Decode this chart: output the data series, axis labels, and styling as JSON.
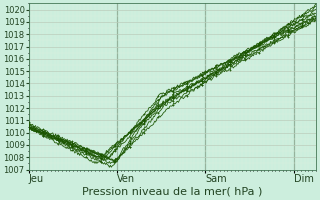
{
  "xlabel": "Pression niveau de la mer( hPa )",
  "ylim": [
    1007,
    1020.5
  ],
  "yticks": [
    1007,
    1008,
    1009,
    1010,
    1011,
    1012,
    1013,
    1014,
    1015,
    1016,
    1017,
    1018,
    1019,
    1020
  ],
  "xtick_labels": [
    "Jeu",
    "Ven",
    "Sam",
    "Dim"
  ],
  "xtick_positions": [
    0.0,
    1.0,
    2.0,
    3.0
  ],
  "vline_positions": [
    0.0,
    1.0,
    2.0,
    3.0
  ],
  "x_start": 0.0,
  "x_end": 3.25,
  "background_color": "#cceedd",
  "grid_major_color": "#bbccbb",
  "grid_minor_color": "#ddeedd",
  "line_color": "#1a5500",
  "marker_color": "#1a5500",
  "xlabel_fontsize": 8,
  "ytick_fontsize": 6,
  "xtick_fontsize": 7,
  "n_lines": 9
}
